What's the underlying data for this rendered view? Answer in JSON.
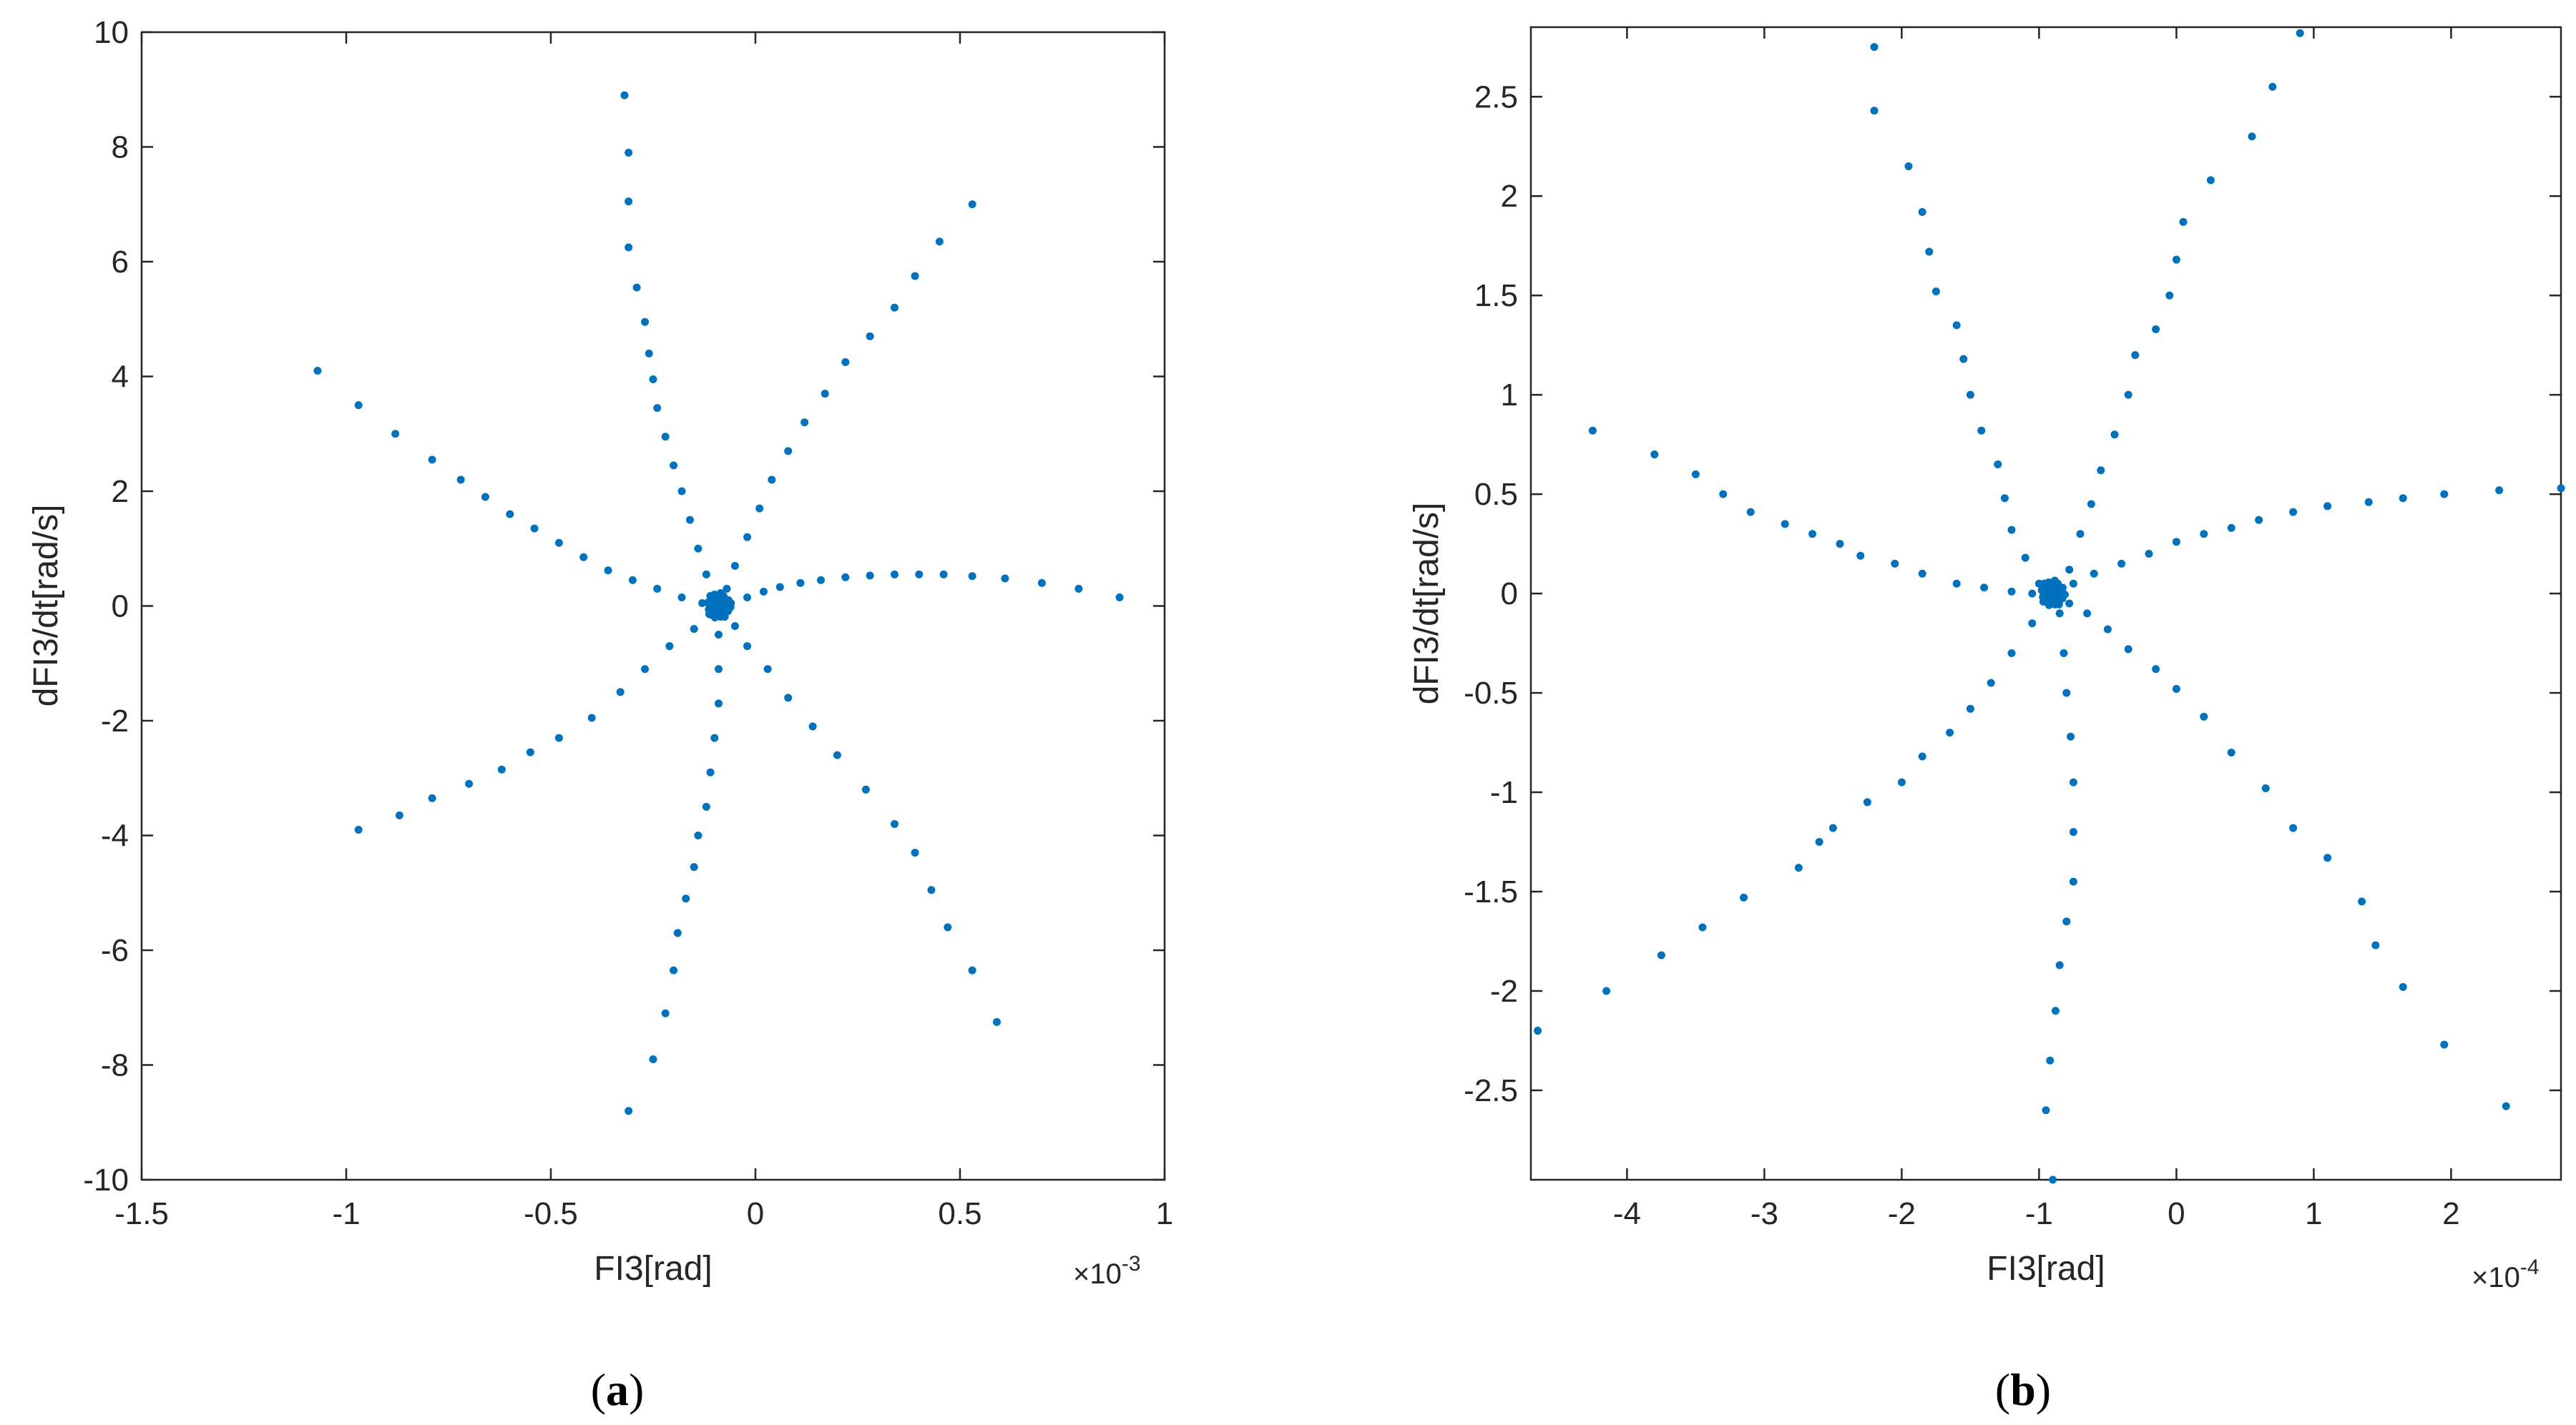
{
  "chart_data": [
    {
      "type": "scatter",
      "panel_label": "(a)",
      "panel_letter": "a",
      "xlabel": "FI3[rad]",
      "ylabel": "dFI3/dt[rad/s]",
      "x_exponent_base": "×10",
      "x_exponent_power": "-3",
      "xlim": [
        -1.5,
        1
      ],
      "ylim": [
        -10,
        10
      ],
      "xticks": [
        -1.5,
        -1,
        -0.5,
        0,
        0.5,
        1
      ],
      "xtick_labels": [
        "-1.5",
        "-1",
        "-0.5",
        "0",
        "0.5",
        "1"
      ],
      "yticks": [
        -10,
        -8,
        -6,
        -4,
        -2,
        0,
        2,
        4,
        6,
        8,
        10
      ],
      "ytick_labels": [
        "-10",
        "-8",
        "-6",
        "-4",
        "-2",
        "0",
        "2",
        "4",
        "6",
        "8",
        "10"
      ],
      "marker_color": "#0072BD",
      "center": [
        -0.09,
        0.0
      ],
      "arms": [
        {
          "name": "arm-up",
          "x": [
            -0.32,
            -0.31,
            -0.31,
            -0.31,
            -0.29,
            -0.27,
            -0.26,
            -0.25,
            -0.24,
            -0.22,
            -0.2,
            -0.18,
            -0.16,
            -0.14,
            -0.12,
            -0.1
          ],
          "y": [
            8.9,
            7.9,
            7.05,
            6.25,
            5.55,
            4.95,
            4.4,
            3.95,
            3.45,
            2.95,
            2.45,
            2.0,
            1.5,
            1.0,
            0.55,
            0.2
          ]
        },
        {
          "name": "arm-down",
          "x": [
            -0.31,
            -0.25,
            -0.22,
            -0.2,
            -0.19,
            -0.17,
            -0.15,
            -0.14,
            -0.12,
            -0.11,
            -0.1,
            -0.09,
            -0.09,
            -0.09
          ],
          "y": [
            -8.8,
            -7.9,
            -7.1,
            -6.35,
            -5.7,
            -5.1,
            -4.55,
            -4.0,
            -3.5,
            -2.9,
            -2.3,
            -1.7,
            -1.1,
            -0.5
          ]
        },
        {
          "name": "arm-upper-right",
          "x": [
            0.53,
            0.45,
            0.39,
            0.34,
            0.28,
            0.22,
            0.17,
            0.12,
            0.08,
            0.04,
            0.01,
            -0.02,
            -0.05,
            -0.07
          ],
          "y": [
            7.0,
            6.35,
            5.75,
            5.2,
            4.7,
            4.25,
            3.7,
            3.2,
            2.7,
            2.2,
            1.7,
            1.2,
            0.7,
            0.3
          ]
        },
        {
          "name": "arm-lower-right",
          "x": [
            0.59,
            0.53,
            0.47,
            0.43,
            0.39,
            0.34,
            0.27,
            0.2,
            0.14,
            0.08,
            0.03,
            -0.02,
            -0.05,
            -0.07
          ],
          "y": [
            -7.25,
            -6.35,
            -5.6,
            -4.95,
            -4.3,
            -3.8,
            -3.2,
            -2.6,
            -2.1,
            -1.6,
            -1.1,
            -0.7,
            -0.35,
            -0.1
          ]
        },
        {
          "name": "arm-upper-left",
          "x": [
            -1.07,
            -0.97,
            -0.88,
            -0.79,
            -0.72,
            -0.66,
            -0.6,
            -0.54,
            -0.48,
            -0.42,
            -0.36,
            -0.3,
            -0.24,
            -0.18,
            -0.13
          ],
          "y": [
            4.1,
            3.5,
            3.0,
            2.55,
            2.2,
            1.9,
            1.6,
            1.35,
            1.1,
            0.85,
            0.62,
            0.45,
            0.3,
            0.15,
            0.05
          ]
        },
        {
          "name": "arm-lower-left",
          "x": [
            -0.97,
            -0.87,
            -0.79,
            -0.7,
            -0.62,
            -0.55,
            -0.48,
            -0.4,
            -0.33,
            -0.27,
            -0.21,
            -0.15,
            -0.11
          ],
          "y": [
            -3.9,
            -3.65,
            -3.35,
            -3.1,
            -2.85,
            -2.55,
            -2.3,
            -1.95,
            -1.5,
            -1.1,
            -0.7,
            -0.4,
            -0.15
          ]
        },
        {
          "name": "arm-right",
          "x": [
            0.89,
            0.79,
            0.7,
            0.61,
            0.53,
            0.46,
            0.4,
            0.34,
            0.28,
            0.22,
            0.16,
            0.11,
            0.06,
            0.02,
            -0.02,
            -0.06
          ],
          "y": [
            0.15,
            0.3,
            0.4,
            0.48,
            0.52,
            0.55,
            0.55,
            0.55,
            0.53,
            0.5,
            0.45,
            0.4,
            0.33,
            0.25,
            0.15,
            0.05
          ]
        }
      ]
    },
    {
      "type": "scatter",
      "panel_label": "(b)",
      "panel_letter": "b",
      "xlabel": "FI3[rad]",
      "ylabel": "dFI3/dt[rad/s]",
      "x_exponent_base": "×10",
      "x_exponent_power": "-4",
      "xlim": [
        -4.7,
        2.8
      ],
      "ylim": [
        -2.95,
        2.85
      ],
      "xticks": [
        -4,
        -3,
        -2,
        -1,
        0,
        1,
        2
      ],
      "xtick_labels": [
        "-4",
        "-3",
        "-2",
        "-1",
        "0",
        "1",
        "2"
      ],
      "yticks": [
        -2.5,
        -2,
        -1.5,
        -1,
        -0.5,
        0,
        0.5,
        1,
        1.5,
        2,
        2.5
      ],
      "ytick_labels": [
        "-2.5",
        "-2",
        "-1.5",
        "-1",
        "-0.5",
        "0",
        "0.5",
        "1",
        "1.5",
        "2",
        "2.5"
      ],
      "marker_color": "#0072BD",
      "center": [
        -0.9,
        0.0
      ],
      "arms": [
        {
          "name": "arm-up",
          "x": [
            -2.2,
            -2.2,
            -1.95,
            -1.85,
            -1.8,
            -1.75,
            -1.6,
            -1.55,
            -1.5,
            -1.42,
            -1.3,
            -1.25,
            -1.2,
            -1.1,
            -1.0
          ],
          "y": [
            2.75,
            2.43,
            2.15,
            1.92,
            1.72,
            1.52,
            1.35,
            1.18,
            1.0,
            0.82,
            0.65,
            0.48,
            0.32,
            0.18,
            0.05
          ]
        },
        {
          "name": "arm-down",
          "x": [
            -0.9,
            -0.95,
            -0.92,
            -0.88,
            -0.85,
            -0.8,
            -0.75,
            -0.75,
            -0.75,
            -0.77,
            -0.8,
            -0.82,
            -0.85
          ],
          "y": [
            -2.95,
            -2.6,
            -2.35,
            -2.1,
            -1.87,
            -1.65,
            -1.45,
            -1.2,
            -0.95,
            -0.72,
            -0.5,
            -0.3,
            -0.1
          ]
        },
        {
          "name": "arm-upper-right",
          "x": [
            0.9,
            0.7,
            0.55,
            0.25,
            0.05,
            0.0,
            -0.05,
            -0.15,
            -0.3,
            -0.35,
            -0.45,
            -0.55,
            -0.62,
            -0.7,
            -0.78
          ],
          "y": [
            2.82,
            2.55,
            2.3,
            2.08,
            1.87,
            1.68,
            1.5,
            1.33,
            1.2,
            1.0,
            0.8,
            0.62,
            0.45,
            0.3,
            0.12
          ]
        },
        {
          "name": "arm-lower-right",
          "x": [
            2.4,
            1.95,
            1.65,
            1.45,
            1.35,
            1.1,
            0.85,
            0.65,
            0.4,
            0.2,
            0.0,
            -0.15,
            -0.35,
            -0.5,
            -0.65,
            -0.78
          ],
          "y": [
            -2.58,
            -2.27,
            -1.98,
            -1.77,
            -1.55,
            -1.33,
            -1.18,
            -0.98,
            -0.8,
            -0.62,
            -0.48,
            -0.38,
            -0.28,
            -0.18,
            -0.1,
            -0.05
          ]
        },
        {
          "name": "arm-upper-left",
          "x": [
            -4.25,
            -3.8,
            -3.5,
            -3.3,
            -3.1,
            -2.85,
            -2.65,
            -2.45,
            -2.3,
            -2.05,
            -1.85,
            -1.6,
            -1.4,
            -1.2,
            -1.05
          ],
          "y": [
            0.82,
            0.7,
            0.6,
            0.5,
            0.41,
            0.35,
            0.3,
            0.25,
            0.19,
            0.15,
            0.1,
            0.05,
            0.03,
            0.01,
            0.0
          ]
        },
        {
          "name": "arm-lower-left",
          "x": [
            -4.65,
            -4.15,
            -3.75,
            -3.45,
            -3.15,
            -2.75,
            -2.6,
            -2.5,
            -2.25,
            -2.0,
            -1.85,
            -1.65,
            -1.5,
            -1.35,
            -1.2,
            -1.05
          ],
          "y": [
            -2.2,
            -2.0,
            -1.82,
            -1.68,
            -1.53,
            -1.38,
            -1.25,
            -1.18,
            -1.05,
            -0.95,
            -0.82,
            -0.7,
            -0.58,
            -0.45,
            -0.3,
            -0.15
          ]
        },
        {
          "name": "arm-right",
          "x": [
            2.8,
            2.35,
            1.95,
            1.65,
            1.4,
            1.1,
            0.85,
            0.6,
            0.4,
            0.2,
            0.0,
            -0.2,
            -0.4,
            -0.6,
            -0.75
          ],
          "y": [
            0.53,
            0.52,
            0.5,
            0.48,
            0.46,
            0.44,
            0.41,
            0.37,
            0.33,
            0.3,
            0.26,
            0.2,
            0.15,
            0.1,
            0.05
          ]
        }
      ]
    }
  ]
}
